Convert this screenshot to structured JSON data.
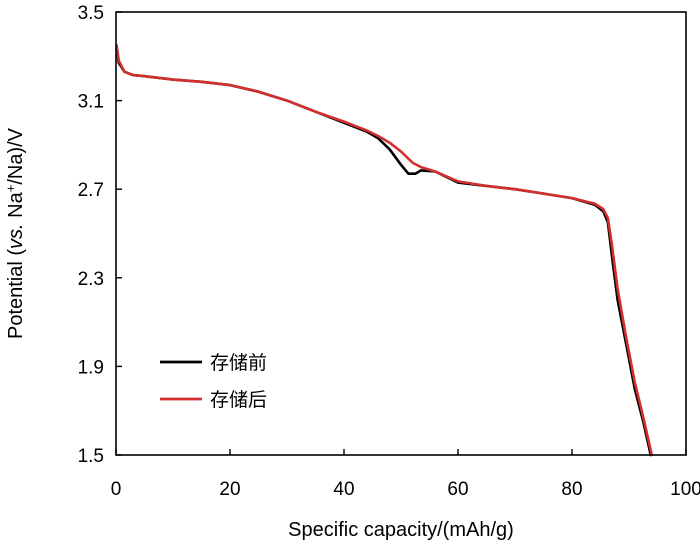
{
  "chart_data": {
    "type": "line",
    "title": "",
    "xlabel": "Specific capacity/(mAh/g)",
    "ylabel_parts": [
      "Potential (",
      "vs.",
      " Na",
      "+",
      "/Na)/V"
    ],
    "xlim": [
      0,
      100
    ],
    "ylim": [
      1.5,
      3.5
    ],
    "x_ticks": [
      "0",
      "20",
      "40",
      "60",
      "80",
      "100"
    ],
    "y_ticks": [
      "1.5",
      "1.9",
      "2.3",
      "2.7",
      "3.1",
      "3.5"
    ],
    "grid": false,
    "legend_position": "lower-left",
    "series": [
      {
        "name": "存储前",
        "color": "#000000",
        "points": [
          [
            0.1,
            3.33
          ],
          [
            0.5,
            3.27
          ],
          [
            1.5,
            3.23
          ],
          [
            3,
            3.215
          ],
          [
            5,
            3.21
          ],
          [
            10,
            3.195
          ],
          [
            15,
            3.185
          ],
          [
            20,
            3.17
          ],
          [
            25,
            3.14
          ],
          [
            30,
            3.1
          ],
          [
            35,
            3.05
          ],
          [
            40,
            3.0
          ],
          [
            44,
            2.96
          ],
          [
            46,
            2.93
          ],
          [
            48,
            2.88
          ],
          [
            50,
            2.81
          ],
          [
            51.3,
            2.77
          ],
          [
            52.5,
            2.77
          ],
          [
            53.5,
            2.785
          ],
          [
            56,
            2.78
          ],
          [
            60,
            2.73
          ],
          [
            65,
            2.715
          ],
          [
            70,
            2.7
          ],
          [
            75,
            2.68
          ],
          [
            80,
            2.66
          ],
          [
            84,
            2.63
          ],
          [
            85.5,
            2.6
          ],
          [
            86.3,
            2.55
          ],
          [
            87,
            2.4
          ],
          [
            88,
            2.2
          ],
          [
            89.5,
            2.0
          ],
          [
            91,
            1.8
          ],
          [
            92.5,
            1.65
          ],
          [
            93.8,
            1.5
          ]
        ]
      },
      {
        "name": "存储后",
        "color": "#d32f2f",
        "points": [
          [
            0.1,
            3.35
          ],
          [
            0.5,
            3.28
          ],
          [
            1.5,
            3.23
          ],
          [
            3,
            3.215
          ],
          [
            5,
            3.21
          ],
          [
            10,
            3.195
          ],
          [
            15,
            3.185
          ],
          [
            20,
            3.17
          ],
          [
            25,
            3.14
          ],
          [
            30,
            3.1
          ],
          [
            35,
            3.05
          ],
          [
            40,
            3.005
          ],
          [
            44,
            2.965
          ],
          [
            46,
            2.94
          ],
          [
            48,
            2.91
          ],
          [
            50,
            2.87
          ],
          [
            52,
            2.82
          ],
          [
            53.5,
            2.8
          ],
          [
            56,
            2.78
          ],
          [
            60,
            2.735
          ],
          [
            65,
            2.715
          ],
          [
            70,
            2.7
          ],
          [
            75,
            2.68
          ],
          [
            80,
            2.66
          ],
          [
            84,
            2.635
          ],
          [
            85.5,
            2.61
          ],
          [
            86.3,
            2.57
          ],
          [
            87,
            2.45
          ],
          [
            88,
            2.25
          ],
          [
            89.5,
            2.03
          ],
          [
            91,
            1.83
          ],
          [
            92.5,
            1.67
          ],
          [
            94,
            1.5
          ]
        ]
      }
    ]
  }
}
